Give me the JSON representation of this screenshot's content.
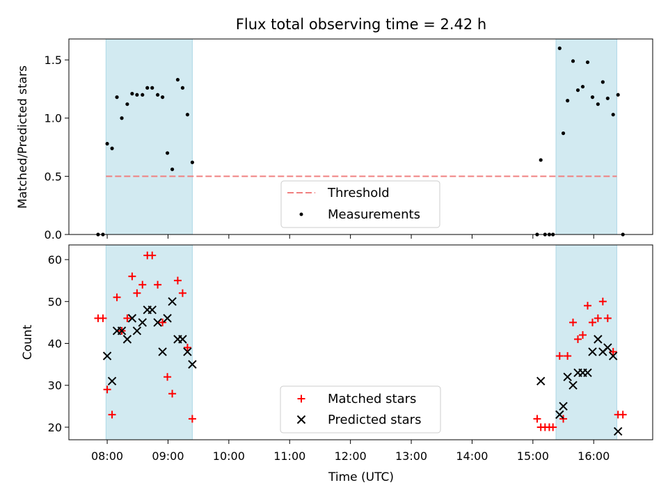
{
  "chart_data": {
    "type": "scatter",
    "title": "Flux total observing time = 2.42 h",
    "xlabel": "Time (UTC)",
    "x_ticks": [
      "08:00",
      "09:00",
      "10:00",
      "11:00",
      "12:00",
      "13:00",
      "14:00",
      "15:00",
      "16:00"
    ],
    "x_tick_hours": [
      8,
      9,
      10,
      11,
      12,
      13,
      14,
      15,
      16
    ],
    "x_range": [
      7.37,
      16.97
    ],
    "colors": {
      "observing_window": "#add8e6",
      "threshold": "#f08080",
      "measurements": "#000000",
      "matched": "#ff0000",
      "predicted": "#000000"
    },
    "observing_windows": [
      {
        "start": 7.98,
        "end": 9.4
      },
      {
        "start": 15.38,
        "end": 16.38
      }
    ],
    "top_panel": {
      "ylabel": "Matched/Predicted stars",
      "ylim": [
        0,
        1.68
      ],
      "y_ticks": [
        "0.0",
        "0.5",
        "1.0",
        "1.5"
      ],
      "y_tick_values": [
        0,
        0.5,
        1.0,
        1.5
      ],
      "threshold": {
        "value": 0.5,
        "x_start": 7.98,
        "x_end": 16.38
      },
      "legend": {
        "threshold_label": "Threshold",
        "measurements_label": "Measurements",
        "position": "lower-center"
      },
      "measurements": [
        [
          7.85,
          0
        ],
        [
          7.93,
          0
        ],
        [
          8.0,
          0.78
        ],
        [
          8.08,
          0.74
        ],
        [
          8.16,
          1.18
        ],
        [
          8.24,
          1.0
        ],
        [
          8.33,
          1.12
        ],
        [
          8.41,
          1.21
        ],
        [
          8.49,
          1.2
        ],
        [
          8.58,
          1.2
        ],
        [
          8.66,
          1.26
        ],
        [
          8.74,
          1.26
        ],
        [
          8.83,
          1.2
        ],
        [
          8.91,
          1.18
        ],
        [
          8.99,
          0.7
        ],
        [
          9.07,
          0.56
        ],
        [
          9.16,
          1.33
        ],
        [
          9.24,
          1.26
        ],
        [
          9.32,
          1.03
        ],
        [
          9.4,
          0.62
        ],
        [
          15.07,
          0
        ],
        [
          15.13,
          0.64
        ],
        [
          15.2,
          0
        ],
        [
          15.27,
          0
        ],
        [
          15.33,
          0
        ],
        [
          15.44,
          1.6
        ],
        [
          15.5,
          0.87
        ],
        [
          15.57,
          1.15
        ],
        [
          15.66,
          1.49
        ],
        [
          15.74,
          1.24
        ],
        [
          15.82,
          1.27
        ],
        [
          15.9,
          1.48
        ],
        [
          15.98,
          1.18
        ],
        [
          16.07,
          1.12
        ],
        [
          16.15,
          1.31
        ],
        [
          16.23,
          1.17
        ],
        [
          16.32,
          1.03
        ],
        [
          16.4,
          1.2
        ],
        [
          16.48,
          0
        ]
      ]
    },
    "bottom_panel": {
      "ylabel": "Count",
      "ylim": [
        17,
        63.5
      ],
      "y_ticks": [
        "20",
        "30",
        "40",
        "50",
        "60"
      ],
      "y_tick_values": [
        20,
        30,
        40,
        50,
        60
      ],
      "legend": {
        "matched_label": "Matched stars",
        "predicted_label": "Predicted stars",
        "position": "lower-center"
      },
      "series": [
        {
          "name": "Matched stars",
          "marker": "plus",
          "points": [
            [
              7.85,
              46
            ],
            [
              7.93,
              46
            ],
            [
              8.0,
              29
            ],
            [
              8.08,
              23
            ],
            [
              8.16,
              51
            ],
            [
              8.24,
              43
            ],
            [
              8.33,
              46
            ],
            [
              8.41,
              56
            ],
            [
              8.49,
              52
            ],
            [
              8.58,
              54
            ],
            [
              8.66,
              61
            ],
            [
              8.74,
              61
            ],
            [
              8.83,
              54
            ],
            [
              8.91,
              45
            ],
            [
              8.99,
              32
            ],
            [
              9.07,
              28
            ],
            [
              9.16,
              55
            ],
            [
              9.24,
              52
            ],
            [
              9.32,
              39
            ],
            [
              9.4,
              22
            ],
            [
              15.07,
              22
            ],
            [
              15.13,
              20
            ],
            [
              15.2,
              20
            ],
            [
              15.27,
              20
            ],
            [
              15.33,
              20
            ],
            [
              15.44,
              37
            ],
            [
              15.5,
              22
            ],
            [
              15.57,
              37
            ],
            [
              15.66,
              45
            ],
            [
              15.74,
              41
            ],
            [
              15.82,
              42
            ],
            [
              15.9,
              49
            ],
            [
              15.98,
              45
            ],
            [
              16.07,
              46
            ],
            [
              16.15,
              50
            ],
            [
              16.23,
              46
            ],
            [
              16.32,
              38
            ],
            [
              16.4,
              23
            ],
            [
              16.48,
              23
            ]
          ]
        },
        {
          "name": "Predicted stars",
          "marker": "x",
          "points": [
            [
              8.0,
              37
            ],
            [
              8.08,
              31
            ],
            [
              8.16,
              43
            ],
            [
              8.24,
              43
            ],
            [
              8.33,
              41
            ],
            [
              8.41,
              46
            ],
            [
              8.49,
              43
            ],
            [
              8.58,
              45
            ],
            [
              8.66,
              48
            ],
            [
              8.74,
              48
            ],
            [
              8.83,
              45
            ],
            [
              8.91,
              38
            ],
            [
              8.99,
              46
            ],
            [
              9.07,
              50
            ],
            [
              9.16,
              41
            ],
            [
              9.24,
              41
            ],
            [
              9.32,
              38
            ],
            [
              9.4,
              35
            ],
            [
              15.13,
              31
            ],
            [
              15.44,
              23
            ],
            [
              15.5,
              25
            ],
            [
              15.57,
              32
            ],
            [
              15.66,
              30
            ],
            [
              15.74,
              33
            ],
            [
              15.82,
              33
            ],
            [
              15.9,
              33
            ],
            [
              15.98,
              38
            ],
            [
              16.07,
              41
            ],
            [
              16.15,
              38
            ],
            [
              16.23,
              39
            ],
            [
              16.32,
              37
            ],
            [
              16.4,
              19
            ]
          ]
        }
      ]
    }
  }
}
